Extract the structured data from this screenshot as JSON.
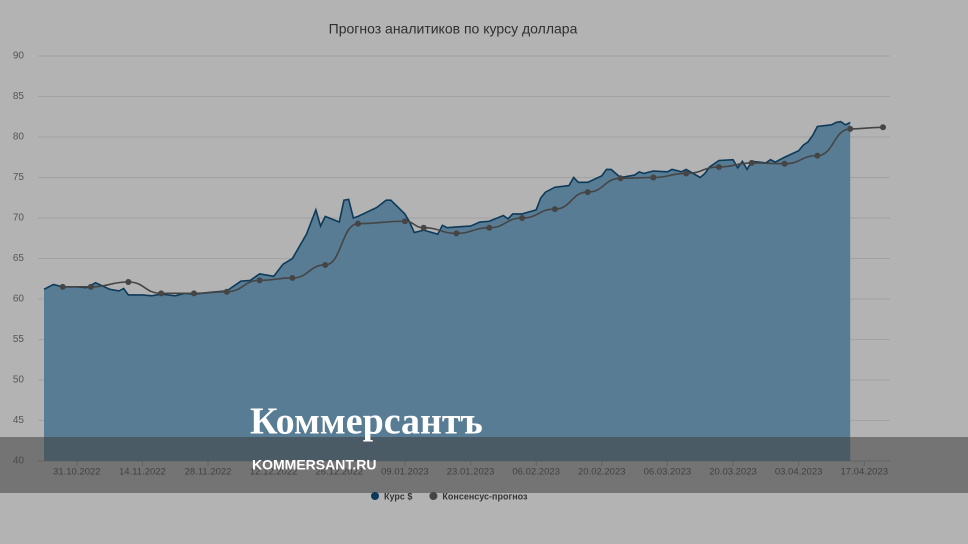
{
  "chart_data": {
    "type": "area-line",
    "title": "Прогноз аналитиков по курсу доллара",
    "xlim": [
      "24.10.2022",
      "21.04.2023"
    ],
    "xticks": [
      "31.10.2022",
      "14.11.2022",
      "28.11.2022",
      "12.12.2022",
      "26.12.2022",
      "09.01.2023",
      "23.01.2023",
      "06.02.2023",
      "20.02.2023",
      "06.03.2023",
      "20.03.2023",
      "03.04.2023",
      "17.04.2023"
    ],
    "ylim": [
      40,
      90
    ],
    "yticks": [
      40,
      45,
      50,
      55,
      60,
      65,
      70,
      75,
      80,
      85,
      90
    ],
    "grid": true,
    "legend": "bottom",
    "series": [
      {
        "name": "Курс $",
        "color": "#0e3a5a",
        "fill": "#587c94",
        "area": true,
        "markers": false,
        "x": [
          "24.10.2022",
          "26.10.2022",
          "28.10.2022",
          "31.10.2022",
          "02.11.2022",
          "04.11.2022",
          "07.11.2022",
          "09.11.2022",
          "10.11.2022",
          "11.11.2022",
          "14.11.2022",
          "16.11.2022",
          "18.11.2022",
          "21.11.2022",
          "23.11.2022",
          "25.11.2022",
          "28.11.2022",
          "30.11.2022",
          "02.12.2022",
          "05.12.2022",
          "07.12.2022",
          "09.12.2022",
          "12.12.2022",
          "14.12.2022",
          "16.12.2022",
          "19.12.2022",
          "21.12.2022",
          "22.12.2022",
          "23.12.2022",
          "26.12.2022",
          "27.12.2022",
          "28.12.2022",
          "29.12.2022",
          "30.12.2022",
          "03.01.2023",
          "05.01.2023",
          "06.01.2023",
          "09.01.2023",
          "10.01.2023",
          "11.01.2023",
          "13.01.2023",
          "16.01.2023",
          "17.01.2023",
          "18.01.2023",
          "20.01.2023",
          "23.01.2023",
          "25.01.2023",
          "27.01.2023",
          "30.01.2023",
          "31.01.2023",
          "01.02.2023",
          "03.02.2023",
          "06.02.2023",
          "07.02.2023",
          "08.02.2023",
          "10.02.2023",
          "13.02.2023",
          "14.02.2023",
          "15.02.2023",
          "17.02.2023",
          "20.02.2023",
          "21.02.2023",
          "22.02.2023",
          "24.02.2023",
          "27.02.2023",
          "28.02.2023",
          "01.03.2023",
          "03.03.2023",
          "06.03.2023",
          "07.03.2023",
          "09.03.2023",
          "10.03.2023",
          "13.03.2023",
          "14.03.2023",
          "15.03.2023",
          "17.03.2023",
          "20.03.2023",
          "21.03.2023",
          "22.03.2023",
          "23.03.2023",
          "24.03.2023",
          "27.03.2023",
          "28.03.2023",
          "29.03.2023",
          "31.03.2023",
          "03.04.2023",
          "04.04.2023",
          "05.04.2023",
          "06.04.2023",
          "07.04.2023",
          "10.04.2023",
          "11.04.2023",
          "12.04.2023",
          "13.04.2023",
          "14.04.2023"
        ],
        "values": [
          61.2,
          61.8,
          61.5,
          61.5,
          61.4,
          62.0,
          61.2,
          61.0,
          61.3,
          60.5,
          60.5,
          60.4,
          60.6,
          60.4,
          60.7,
          60.6,
          60.8,
          60.9,
          61.0,
          62.2,
          62.3,
          63.1,
          62.8,
          64.3,
          65.0,
          68.0,
          71.0,
          69.0,
          70.2,
          69.5,
          72.2,
          72.3,
          70.0,
          70.2,
          71.3,
          72.2,
          72.2,
          70.5,
          69.5,
          68.2,
          68.5,
          68.0,
          69.1,
          68.8,
          68.9,
          69.0,
          69.5,
          69.6,
          70.3,
          69.9,
          70.5,
          70.5,
          71.0,
          72.5,
          73.2,
          73.8,
          74.0,
          75.0,
          74.4,
          74.4,
          75.2,
          76.0,
          76.0,
          75.0,
          75.3,
          75.7,
          75.5,
          75.8,
          75.7,
          76.0,
          75.7,
          76.0,
          75.0,
          75.5,
          76.3,
          77.1,
          77.2,
          76.2,
          77.0,
          76.0,
          77.0,
          76.8,
          77.2,
          76.9,
          77.5,
          78.3,
          79.0,
          79.4,
          80.2,
          81.3,
          81.5,
          81.8,
          81.9,
          81.5,
          81.8
        ]
      },
      {
        "name": "Консенсус-прогноз",
        "color": "#454545",
        "area": false,
        "markers": true,
        "x": [
          "28.10.2022",
          "03.11.2022",
          "11.11.2022",
          "18.11.2022",
          "25.11.2022",
          "02.12.2022",
          "09.12.2022",
          "16.12.2022",
          "23.12.2022",
          "30.12.2022",
          "09.01.2023",
          "13.01.2023",
          "20.01.2023",
          "27.01.2023",
          "03.02.2023",
          "10.02.2023",
          "17.02.2023",
          "24.02.2023",
          "03.03.2023",
          "10.03.2023",
          "17.03.2023",
          "24.03.2023",
          "31.03.2023",
          "07.04.2023",
          "14.04.2023",
          "21.04.2023"
        ],
        "values": [
          61.5,
          61.5,
          62.1,
          60.7,
          60.7,
          60.9,
          62.3,
          62.6,
          64.2,
          69.3,
          69.6,
          68.8,
          68.1,
          68.8,
          70.0,
          71.1,
          73.2,
          74.9,
          75.0,
          75.5,
          76.3,
          76.8,
          76.7,
          77.7,
          81.0,
          81.2
        ]
      }
    ]
  },
  "watermark": {
    "brand": "Коммерсантъ",
    "site": "KOMMERSANT.RU"
  }
}
